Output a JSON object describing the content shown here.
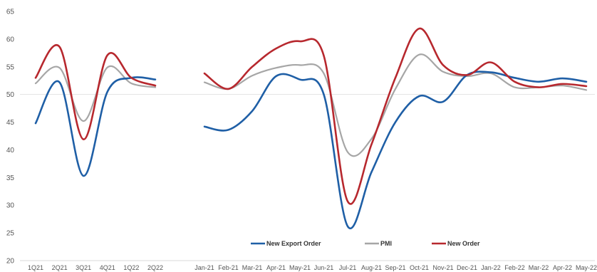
{
  "chart_data": {
    "type": "line",
    "ylim": [
      20,
      65
    ],
    "yticks": [
      20,
      25,
      30,
      35,
      40,
      45,
      50,
      55,
      60,
      65
    ],
    "grid": false,
    "reference_line": 50,
    "legend_placement": "bottom-center",
    "panels": [
      {
        "categories": [
          "1Q21",
          "2Q21",
          "3Q21",
          "4Q21",
          "1Q22",
          "2Q22"
        ],
        "series": [
          {
            "name": "New Export Order",
            "color": "#1f5fa6",
            "values": [
              44.8,
              52.2,
              35.3,
              50.5,
              53.0,
              52.7
            ]
          },
          {
            "name": "PMI",
            "color": "#a6a6a6",
            "values": [
              52.0,
              54.8,
              45.2,
              54.9,
              52.0,
              51.3
            ]
          },
          {
            "name": "New Order",
            "color": "#b7282e",
            "values": [
              53.0,
              58.6,
              41.9,
              57.1,
              53.0,
              51.6
            ]
          }
        ]
      },
      {
        "categories": [
          "Jan-21",
          "Feb-21",
          "Mar-21",
          "Apr-21",
          "May-21",
          "Jun-21",
          "Jul-21",
          "Aug-21",
          "Sep-21",
          "Oct-21",
          "Nov-21",
          "Dec-21",
          "Jan-22",
          "Feb-22",
          "Mar-22",
          "Apr-22",
          "May-22"
        ],
        "series": [
          {
            "name": "New Export Order",
            "color": "#1f5fa6",
            "values": [
              44.2,
              43.6,
              47.0,
              53.3,
              52.7,
              50.0,
              26.2,
              36.0,
              45.0,
              49.7,
              48.7,
              53.5,
              54.0,
              53.0,
              52.3,
              52.9,
              52.3
            ]
          },
          {
            "name": "PMI",
            "color": "#a6a6a6",
            "values": [
              52.2,
              51.0,
              53.4,
              54.8,
              55.3,
              53.8,
              39.6,
              42.0,
              51.0,
              57.2,
              54.1,
              53.3,
              53.8,
              51.3,
              51.3,
              51.6,
              50.8
            ]
          },
          {
            "name": "New Order",
            "color": "#b7282e",
            "values": [
              53.8,
              51.0,
              55.0,
              58.3,
              59.6,
              57.0,
              30.7,
              41.0,
              53.0,
              61.9,
              55.3,
              53.5,
              55.8,
              52.3,
              51.3,
              51.9,
              51.5
            ]
          }
        ]
      }
    ],
    "legend": [
      "New Export Order",
      "PMI",
      "New Order"
    ]
  }
}
